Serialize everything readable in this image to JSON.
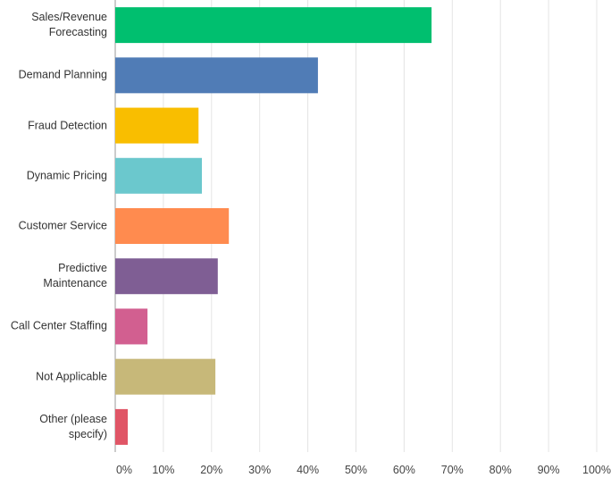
{
  "chart_data": {
    "type": "bar",
    "orientation": "horizontal",
    "categories": [
      "Sales/Revenue Forecasting",
      "Demand Planning",
      "Fraud Detection",
      "Dynamic Pricing",
      "Customer Service",
      "Predictive Maintenance",
      "Call Center Staffing",
      "Not Applicable",
      "Other (please specify)"
    ],
    "values": [
      65.7,
      42.1,
      17.3,
      18,
      23.6,
      21.3,
      6.7,
      20.8,
      2.6
    ],
    "colors": [
      "#00bf6f",
      "#507cb6",
      "#f9be00",
      "#6bc8cd",
      "#ff8b4f",
      "#7f5e94",
      "#d25f90",
      "#c7b879",
      "#e05566"
    ],
    "xlim": [
      0,
      100
    ],
    "xticks": [
      {
        "value": 0,
        "label": "0%"
      },
      {
        "value": 10,
        "label": "10%"
      },
      {
        "value": 20,
        "label": "20%"
      },
      {
        "value": 30,
        "label": "30%"
      },
      {
        "value": 40,
        "label": "40%"
      },
      {
        "value": 50,
        "label": "50%"
      },
      {
        "value": 60,
        "label": "60%"
      },
      {
        "value": 70,
        "label": "70%"
      },
      {
        "value": 80,
        "label": "80%"
      },
      {
        "value": 90,
        "label": "90%"
      },
      {
        "value": 100,
        "label": "100%"
      }
    ],
    "grid": true
  }
}
